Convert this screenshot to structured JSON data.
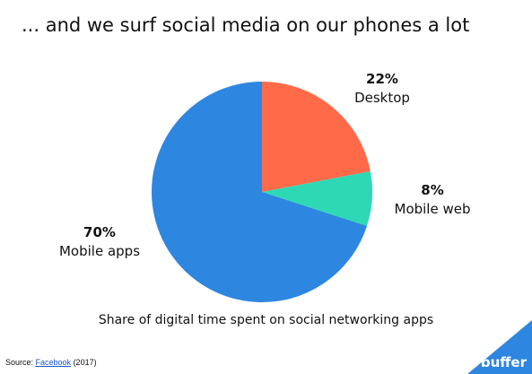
{
  "title": "... and we surf social media on our phones a lot",
  "chart_data": {
    "type": "pie",
    "title": "",
    "subtitle": "Share of digital time spent on social networking apps",
    "slices": [
      {
        "label": "Desktop",
        "value": 22,
        "display": "22%",
        "color": "#ff6a48"
      },
      {
        "label": "Mobile web",
        "value": 8,
        "display": "8%",
        "color": "#2ed8b4"
      },
      {
        "label": "Mobile apps",
        "value": 70,
        "display": "70%",
        "color": "#2d86e0"
      }
    ]
  },
  "source": {
    "prefix": "Source: ",
    "link_text": "Facebook",
    "suffix": " (2017)"
  },
  "brand": {
    "name": "buffer",
    "icon": "buffer-logo-icon",
    "color": "#2d86e0"
  }
}
